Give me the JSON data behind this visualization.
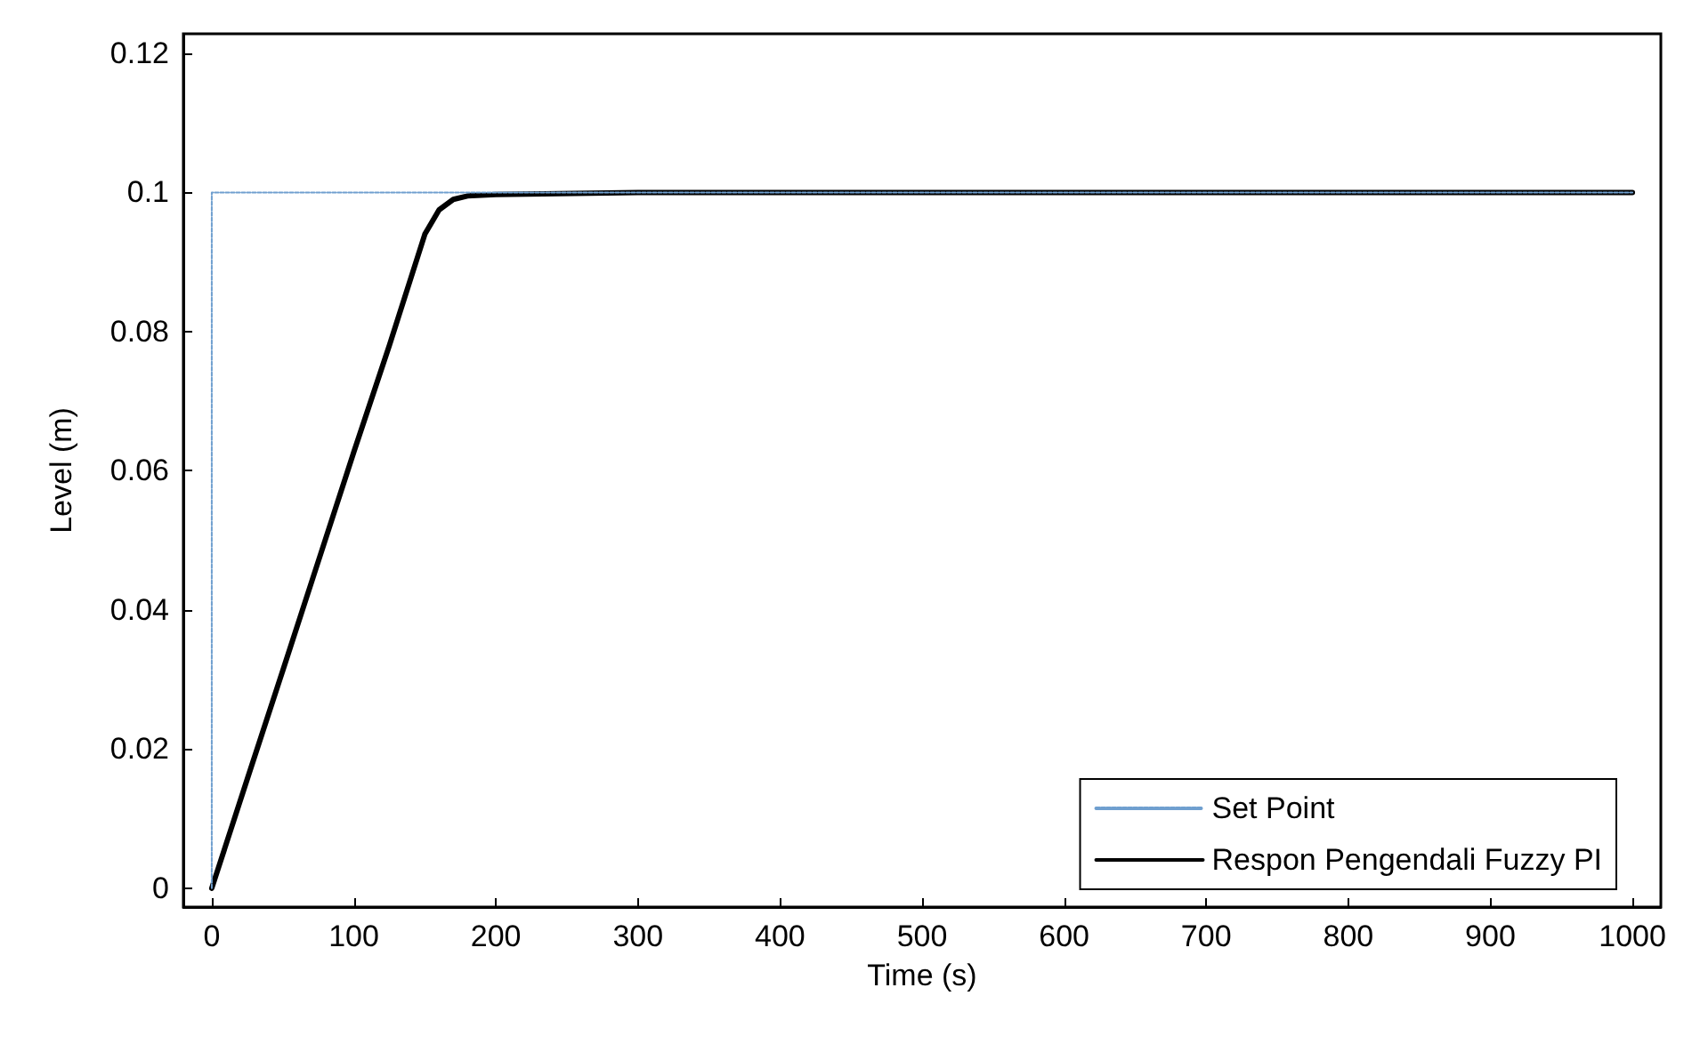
{
  "chart_data": {
    "type": "line",
    "xlabel": "Time (s)",
    "ylabel": "Level (m)",
    "xlim": [
      -20,
      1020
    ],
    "xticks": [
      0,
      100,
      200,
      300,
      400,
      500,
      600,
      700,
      800,
      900,
      1000
    ],
    "ylim": [
      -0.0027,
      0.1228
    ],
    "yticks": [
      0,
      0.02,
      0.04,
      0.06,
      0.08,
      0.1,
      0.12
    ],
    "grid": false,
    "legend": "bottom right",
    "marker": "none",
    "series": [
      {
        "name": "Set Point",
        "color": "#6f9fcf",
        "line_style": "dotted",
        "x": [
          0,
          0,
          1000
        ],
        "values": [
          0,
          0.1,
          0.1
        ]
      },
      {
        "name": "Respon Pengendali Fuzzy PI",
        "color": "#000000",
        "line_style": "solid",
        "x": [
          0,
          25,
          50,
          75,
          100,
          125,
          150,
          160,
          170,
          180,
          200,
          300,
          1000
        ],
        "values": [
          0,
          0.0157,
          0.0313,
          0.047,
          0.0627,
          0.078,
          0.094,
          0.0975,
          0.099,
          0.0995,
          0.0997,
          0.1,
          0.1
        ]
      }
    ]
  }
}
